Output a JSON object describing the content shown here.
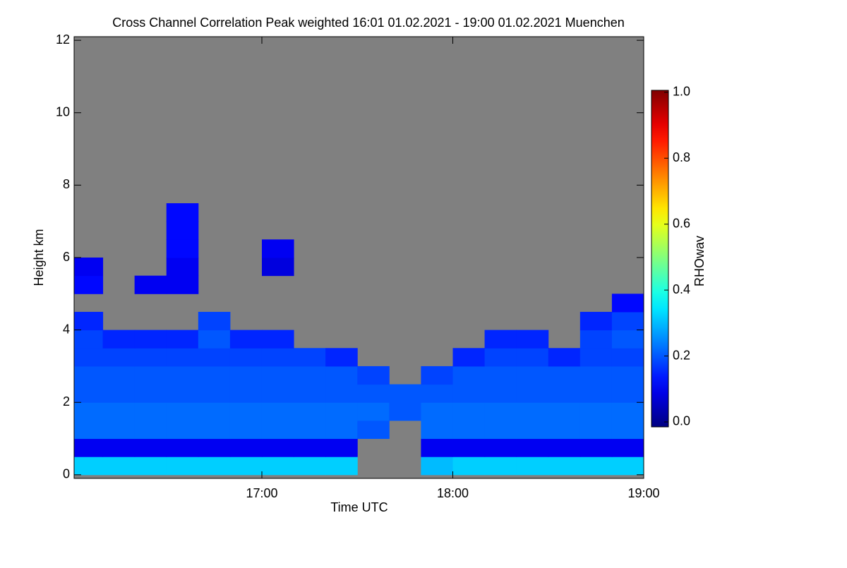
{
  "chart_data": {
    "type": "heatmap",
    "title": "Cross Channel Correlation Peak weighted   16:01 01.02.2021 - 19:00 01.02.2021 Muenchen",
    "x_label": "Time UTC",
    "y_label": "Height km",
    "colorbar_label": "RHOwav",
    "colormap": "jet",
    "missing_color": "#808080",
    "xlim": [
      16.0167,
      19.0
    ],
    "xticks": [
      {
        "value": 17,
        "label": "17:00"
      },
      {
        "value": 18,
        "label": "18:00"
      },
      {
        "value": 19,
        "label": "19:00"
      }
    ],
    "ylim": [
      -0.1,
      12.1
    ],
    "yticks": [
      0,
      2,
      4,
      6,
      8,
      10,
      12
    ],
    "clim": [
      -0.015,
      1.006
    ],
    "cticks": [
      {
        "value": 0,
        "label": "0.0"
      },
      {
        "value": 0.2,
        "label": "0.2"
      },
      {
        "value": 0.4,
        "label": "0.4"
      },
      {
        "value": 0.6,
        "label": "0.6"
      },
      {
        "value": 0.8,
        "label": "0.8"
      },
      {
        "value": 1,
        "label": "1.0"
      }
    ],
    "xbins": [
      16.0167,
      16.1667,
      16.3333,
      16.5,
      16.6667,
      16.8333,
      17,
      17.1667,
      17.3333,
      17.5,
      17.6667,
      17.8333,
      18,
      18.1667,
      18.3333,
      18.5,
      18.6667,
      18.8333,
      19.0
    ],
    "ybins": [
      0,
      0.5,
      1,
      1.5,
      2,
      2.5,
      3,
      3.5,
      4,
      4.5,
      5,
      5.5,
      6,
      6.5,
      7,
      7.5
    ],
    "z": [
      [
        0.32,
        0.32,
        0.32,
        0.32,
        0.32,
        0.32,
        0.32,
        0.32,
        0.32,
        null,
        null,
        0.3,
        0.32,
        0.32,
        0.32,
        0.32,
        0.32,
        0.32
      ],
      [
        0.1,
        0.1,
        0.1,
        0.1,
        0.1,
        0.1,
        0.1,
        0.1,
        0.1,
        null,
        null,
        0.1,
        0.1,
        0.1,
        0.1,
        0.1,
        0.1,
        0.1
      ],
      [
        0.22,
        0.22,
        0.22,
        0.22,
        0.22,
        0.22,
        0.22,
        0.22,
        0.22,
        0.2,
        null,
        0.22,
        0.22,
        0.22,
        0.22,
        0.22,
        0.22,
        0.22
      ],
      [
        0.22,
        0.22,
        0.22,
        0.22,
        0.22,
        0.22,
        0.22,
        0.22,
        0.22,
        0.22,
        0.2,
        0.22,
        0.22,
        0.22,
        0.22,
        0.22,
        0.22,
        0.22
      ],
      [
        0.2,
        0.2,
        0.2,
        0.2,
        0.2,
        0.2,
        0.2,
        0.2,
        0.2,
        0.2,
        0.2,
        0.2,
        0.2,
        0.2,
        0.2,
        0.2,
        0.2,
        0.2
      ],
      [
        0.2,
        0.2,
        0.2,
        0.2,
        0.2,
        0.2,
        0.2,
        0.2,
        0.2,
        0.18,
        null,
        0.18,
        0.2,
        0.2,
        0.2,
        0.2,
        0.2,
        0.2
      ],
      [
        0.18,
        0.18,
        0.18,
        0.18,
        0.18,
        0.18,
        0.18,
        0.18,
        0.15,
        null,
        null,
        null,
        0.15,
        0.18,
        0.18,
        0.15,
        0.18,
        0.18
      ],
      [
        0.18,
        0.15,
        0.15,
        0.15,
        0.2,
        0.15,
        0.15,
        null,
        null,
        null,
        null,
        null,
        null,
        0.15,
        0.15,
        null,
        0.18,
        0.2
      ],
      [
        0.15,
        null,
        null,
        null,
        0.18,
        null,
        null,
        null,
        null,
        null,
        null,
        null,
        null,
        null,
        null,
        null,
        0.15,
        0.18
      ],
      [
        null,
        null,
        null,
        null,
        null,
        null,
        null,
        null,
        null,
        null,
        null,
        null,
        null,
        null,
        null,
        null,
        null,
        0.12
      ],
      [
        0.12,
        null,
        0.1,
        0.1,
        null,
        null,
        null,
        null,
        null,
        null,
        null,
        null,
        null,
        null,
        null,
        null,
        null,
        null
      ],
      [
        0.1,
        null,
        null,
        0.1,
        null,
        null,
        0.08,
        null,
        null,
        null,
        null,
        null,
        null,
        null,
        null,
        null,
        null,
        null
      ],
      [
        null,
        null,
        null,
        0.12,
        null,
        null,
        0.1,
        null,
        null,
        null,
        null,
        null,
        null,
        null,
        null,
        null,
        null,
        null
      ],
      [
        null,
        null,
        null,
        0.12,
        null,
        null,
        null,
        null,
        null,
        null,
        null,
        null,
        null,
        null,
        null,
        null,
        null,
        null
      ],
      [
        null,
        null,
        null,
        0.12,
        null,
        null,
        null,
        null,
        null,
        null,
        null,
        null,
        null,
        null,
        null,
        null,
        null,
        null
      ]
    ]
  }
}
